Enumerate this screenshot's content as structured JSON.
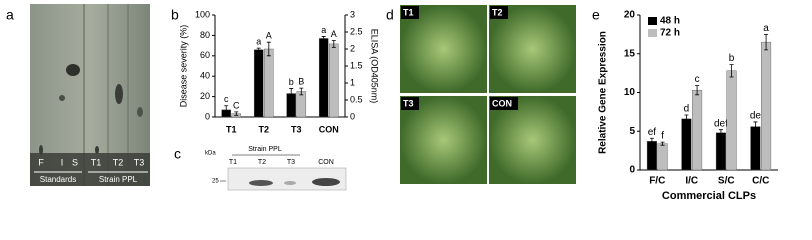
{
  "panel_labels": [
    "a",
    "b",
    "c",
    "d",
    "e"
  ],
  "tlc": {
    "lanes": [
      "F",
      "I",
      "S",
      "T1",
      "T2",
      "T3"
    ],
    "groups": [
      "Standards",
      "Strain PPL"
    ]
  },
  "blot": {
    "unit": "kDa",
    "group": "Strain PPL",
    "lanes": [
      "T1",
      "T2",
      "T3",
      "CON"
    ],
    "marker": "25"
  },
  "photos": {
    "labels": [
      "T1",
      "T2",
      "T3",
      "CON"
    ]
  },
  "chart_data": [
    {
      "type": "bar",
      "categories": [
        "T1",
        "T2",
        "T3",
        "CON"
      ],
      "ylabel": "Disease severity (%)",
      "y2label": "ELISA (OD405nm)",
      "ylim": [
        0,
        100
      ],
      "yticks": [
        0,
        20,
        40,
        60,
        80,
        100
      ],
      "y2lim": [
        0,
        3
      ],
      "y2ticks": [
        0,
        0.5,
        1,
        1.5,
        2,
        2.5,
        3
      ],
      "series": [
        {
          "color": "#000000",
          "values": [
            7,
            66,
            23,
            77
          ],
          "errors": [
            4,
            1.5,
            5,
            2
          ],
          "letters": [
            "c",
            "a",
            "b",
            "a"
          ]
        },
        {
          "color": "#bdbdbd",
          "axis": "y2",
          "values": [
            0.1,
            2.0,
            0.75,
            2.15
          ],
          "errors": [
            0.05,
            0.2,
            0.1,
            0.1
          ],
          "letters": [
            "C",
            "A",
            "B",
            "A"
          ]
        }
      ]
    },
    {
      "type": "bar",
      "categories": [
        "F/C",
        "I/C",
        "S/C",
        "C/C"
      ],
      "ylabel": "Relative Gene Expression",
      "xlabel": "Commercial CLPs",
      "ylim": [
        0,
        20
      ],
      "yticks": [
        0,
        5,
        10,
        15,
        20
      ],
      "legend": "upper left",
      "series": [
        {
          "name": "48 h",
          "color": "#000000",
          "values": [
            3.7,
            6.6,
            4.8,
            5.6
          ],
          "errors": [
            0.4,
            0.5,
            0.4,
            0.6
          ],
          "letters": [
            "ef",
            "d",
            "def",
            "de"
          ]
        },
        {
          "name": "72 h",
          "color": "#bdbdbd",
          "values": [
            3.4,
            10.3,
            12.8,
            16.5
          ],
          "errors": [
            0.2,
            0.6,
            0.8,
            1.0
          ],
          "letters": [
            "f",
            "c",
            "b",
            "a"
          ]
        }
      ]
    }
  ]
}
